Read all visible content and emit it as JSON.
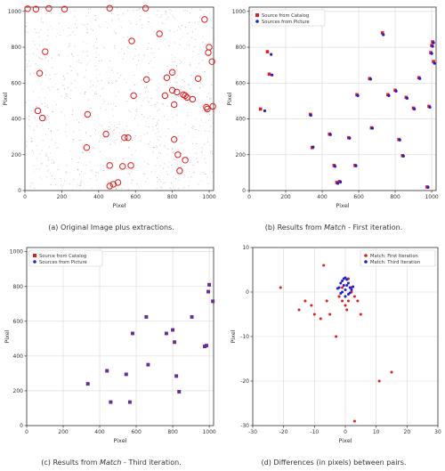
{
  "figure": {
    "captions": [
      {
        "prefix": "(a) Original Image plus extractions.",
        "em": "",
        "suffix": ""
      },
      {
        "prefix": "(b) Results from ",
        "em": "Match",
        "suffix": " - First iteration."
      },
      {
        "prefix": "(c) Results from ",
        "em": "Match",
        "suffix": " - Third iteration."
      },
      {
        "prefix": "(d) Differences (in pixels) between pairs.",
        "em": "",
        "suffix": ""
      }
    ]
  },
  "colors": {
    "catalog": "#e41a1c",
    "picture": "#1f1fd8",
    "third_overlap": "#6a2a9a",
    "circle": "#e41a1c",
    "grid": "#d9d9d9",
    "noise": "#8a8a8a"
  },
  "chart_data": [
    {
      "id": "a",
      "type": "scatter",
      "title": "",
      "xlabel": "Pixel",
      "ylabel": "Pixel",
      "xlim": [
        0,
        1024
      ],
      "ylim": [
        0,
        1024
      ],
      "xticks": [
        0,
        200,
        400,
        600,
        800,
        1000
      ],
      "yticks": [
        0,
        200,
        400,
        600,
        800,
        1000
      ],
      "grid": false,
      "legend": [],
      "series": [
        {
          "style": "circle",
          "x": [
            15,
            60,
            130,
            215,
            460,
            655,
            975,
            1000,
            995,
            110,
            580,
            1015,
            80,
            985,
            70,
            95,
            340,
            560,
            880,
            590,
            730,
            760,
            800,
            860,
            810,
            830,
            660,
            440,
            540,
            335,
            460,
            810,
            840,
            870,
            940,
            990,
            1020,
            910,
            870,
            825,
            530,
            460,
            480,
            505,
            575,
            770,
            800
          ],
          "y": [
            1015,
            1013,
            1017,
            1013,
            1018,
            1018,
            955,
            800,
            770,
            775,
            835,
            720,
            655,
            465,
            445,
            405,
            425,
            295,
            520,
            530,
            875,
            530,
            560,
            535,
            480,
            200,
            620,
            315,
            295,
            240,
            140,
            285,
            110,
            170,
            625,
            455,
            470,
            510,
            530,
            550,
            135,
            25,
            35,
            45,
            140,
            630,
            660
          ]
        }
      ]
    },
    {
      "id": "b",
      "type": "scatter",
      "title": "",
      "xlabel": "Pixel",
      "ylabel": "Pixel",
      "xlim": [
        0,
        1024
      ],
      "ylim": [
        0,
        1024
      ],
      "xticks": [
        0,
        200,
        400,
        600,
        800,
        1000
      ],
      "yticks": [
        0,
        200,
        400,
        600,
        800,
        1000
      ],
      "grid": true,
      "legend_position": "top-left",
      "series": [
        {
          "name": "Source from Catalog",
          "marker": "square",
          "x": [
            62,
            100,
            110,
            335,
            345,
            440,
            465,
            480,
            495,
            545,
            580,
            590,
            660,
            670,
            730,
            760,
            800,
            820,
            840,
            860,
            900,
            930,
            975,
            985,
            995,
            1000,
            1005,
            1010
          ],
          "y": [
            455,
            775,
            650,
            425,
            240,
            315,
            140,
            45,
            50,
            295,
            140,
            535,
            625,
            350,
            880,
            535,
            560,
            285,
            195,
            520,
            460,
            630,
            20,
            470,
            770,
            810,
            830,
            720
          ],
          "coverage": "partial"
        },
        {
          "name": "Sources from Picture",
          "marker": "circle",
          "x": [
            85,
            120,
            125,
            338,
            350,
            445,
            470,
            485,
            500,
            550,
            585,
            595,
            665,
            675,
            735,
            765,
            805,
            825,
            845,
            865,
            905,
            935,
            980,
            990,
            1000,
            1005,
            1010,
            1015
          ],
          "y": [
            445,
            760,
            645,
            420,
            243,
            312,
            135,
            40,
            48,
            292,
            138,
            530,
            622,
            348,
            870,
            530,
            555,
            282,
            192,
            515,
            455,
            625,
            18,
            465,
            765,
            805,
            825,
            710
          ],
          "coverage": "partial"
        }
      ]
    },
    {
      "id": "c",
      "type": "scatter",
      "title": "",
      "xlabel": "Pixel",
      "ylabel": "Pixel",
      "xlim": [
        0,
        1024
      ],
      "ylim": [
        0,
        1024
      ],
      "xticks": [
        0,
        200,
        400,
        600,
        800,
        1000
      ],
      "yticks": [
        0,
        200,
        400,
        600,
        800,
        1000
      ],
      "grid": true,
      "legend_position": "top-left",
      "series": [
        {
          "name": "Source from Catalog",
          "marker": "square",
          "x": [
            335,
            440,
            460,
            545,
            565,
            580,
            655,
            665,
            765,
            800,
            810,
            820,
            835,
            905,
            975,
            985,
            995,
            1000,
            1020
          ],
          "y": [
            240,
            315,
            135,
            295,
            135,
            530,
            625,
            350,
            530,
            550,
            480,
            285,
            195,
            625,
            455,
            460,
            770,
            810,
            715
          ]
        },
        {
          "name": "Sources from Picture",
          "marker": "circle",
          "x": [
            335,
            440,
            460,
            545,
            565,
            580,
            655,
            665,
            765,
            800,
            810,
            820,
            835,
            905,
            975,
            985,
            995,
            1000,
            1020
          ],
          "y": [
            240,
            315,
            135,
            295,
            135,
            530,
            625,
            350,
            530,
            550,
            480,
            285,
            195,
            625,
            455,
            460,
            770,
            810,
            715
          ]
        }
      ]
    },
    {
      "id": "d",
      "type": "scatter",
      "title": "",
      "xlabel": "Pixel",
      "ylabel": "Pixel",
      "xlim": [
        -30,
        30
      ],
      "ylim": [
        -30,
        10
      ],
      "xticks": [
        -30,
        -20,
        -10,
        0,
        10,
        20,
        30
      ],
      "yticks": [
        -30,
        -20,
        -10,
        0,
        10
      ],
      "grid": true,
      "legend_position": "top-right",
      "series": [
        {
          "name": "Match: First Iteration",
          "marker": "circle",
          "x": [
            -21,
            -15,
            -13,
            -11,
            -10,
            -8,
            -7,
            -6,
            -5,
            -3,
            -2,
            -1,
            0,
            0.5,
            1,
            2,
            3,
            4,
            5,
            11,
            15,
            3,
            -1,
            1,
            2,
            -2,
            0
          ],
          "y": [
            1,
            -4,
            -2,
            -3,
            -5,
            -6,
            6,
            -2,
            -5,
            -10,
            -1,
            1,
            -3,
            -4,
            -2,
            0,
            -1,
            -2,
            -5,
            -20,
            -18,
            -29,
            -2,
            3,
            1,
            -1,
            -1
          ],
          "coverage": "partial"
        },
        {
          "name": "Match: Third Iteration",
          "marker": "circle",
          "x": [
            -2,
            -1.5,
            -1,
            -0.5,
            0,
            0.5,
            1,
            1.5,
            2,
            -1,
            0,
            1,
            0.5,
            -0.5,
            1.5,
            -1.5,
            0,
            2.5,
            -2.5
          ],
          "y": [
            1,
            2,
            2.5,
            3,
            3.2,
            2.8,
            2,
            1,
            0.5,
            0,
            0.5,
            -0.5,
            1.5,
            1.5,
            -0.2,
            -0.3,
            -1,
            1.2,
            0.8
          ],
          "coverage": "partial"
        }
      ]
    }
  ]
}
